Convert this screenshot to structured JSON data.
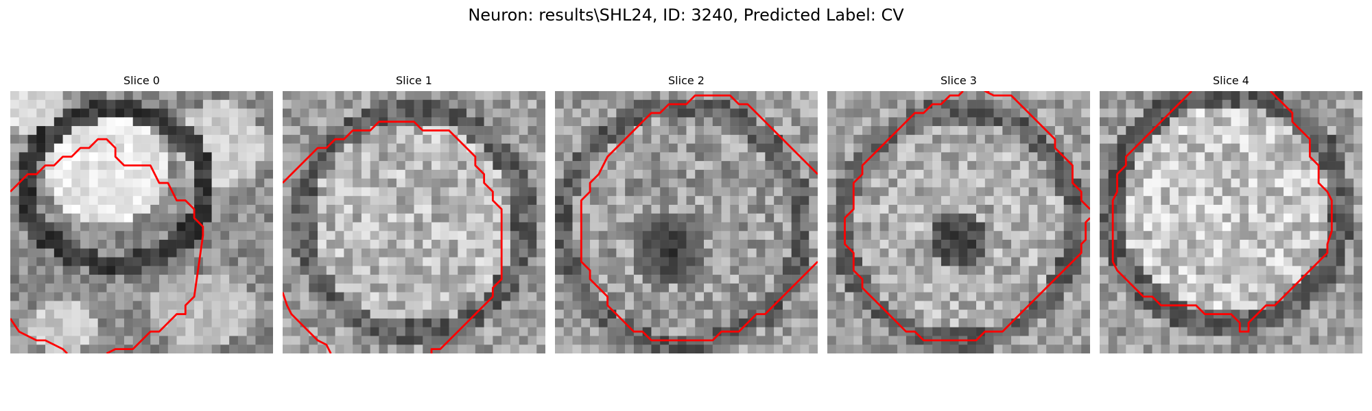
{
  "figure": {
    "title": "Neuron: results\\SHL24, ID: 3240, Predicted Label: CV"
  },
  "panels": [
    {
      "title": "Slice 0",
      "contour_color": "#ff0000"
    },
    {
      "title": "Slice 1",
      "contour_color": "#ff0000"
    },
    {
      "title": "Slice 2",
      "contour_color": "#ff0000"
    },
    {
      "title": "Slice 3",
      "contour_color": "#ff0000"
    },
    {
      "title": "Slice 4",
      "contour_color": "#ff0000"
    }
  ]
}
